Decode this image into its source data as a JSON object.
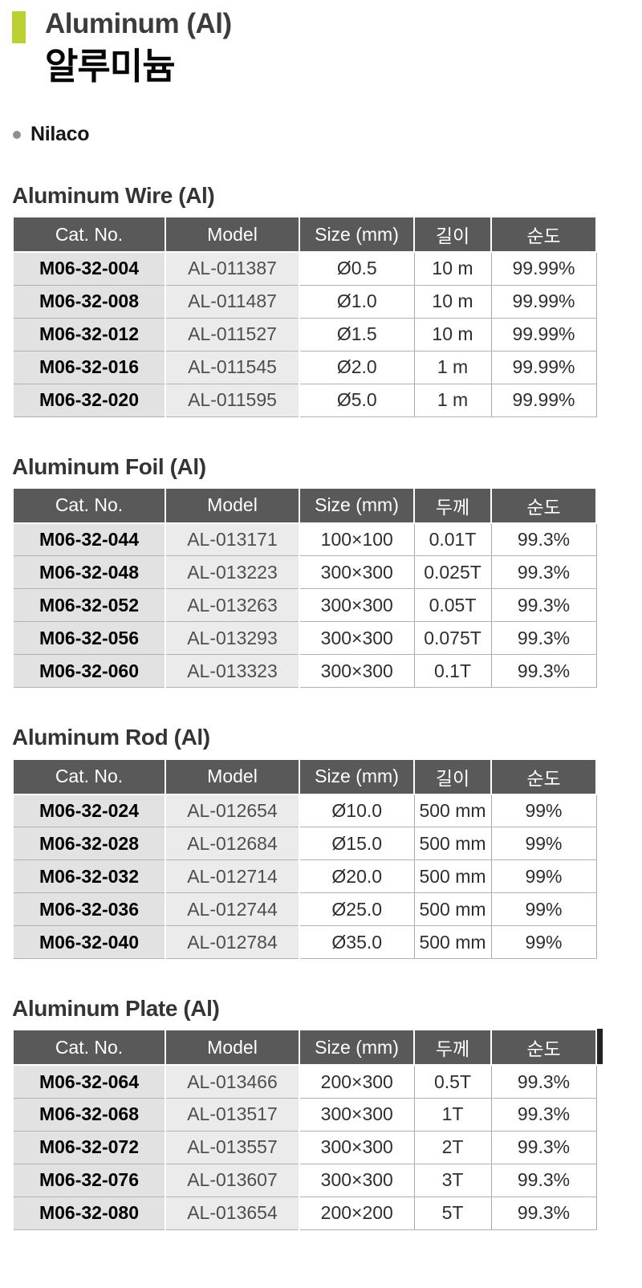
{
  "colors": {
    "accent": "#bcd02f",
    "table_header_bg": "#595959"
  },
  "header": {
    "title_en": "Aluminum (Al)",
    "title_ko": "알루미늄",
    "supplier": "Nilaco"
  },
  "tables": [
    {
      "heading": "Aluminum Wire (Al)",
      "columns": [
        "Cat. No.",
        "Model",
        "Size (mm)",
        "길이",
        "순도"
      ],
      "rows": [
        [
          "M06-32-004",
          "AL-011387",
          "Ø0.5",
          "10 m",
          "99.99%"
        ],
        [
          "M06-32-008",
          "AL-011487",
          "Ø1.0",
          "10 m",
          "99.99%"
        ],
        [
          "M06-32-012",
          "AL-011527",
          "Ø1.5",
          "10 m",
          "99.99%"
        ],
        [
          "M06-32-016",
          "AL-011545",
          "Ø2.0",
          "1 m",
          "99.99%"
        ],
        [
          "M06-32-020",
          "AL-011595",
          "Ø5.0",
          "1 m",
          "99.99%"
        ]
      ]
    },
    {
      "heading": "Aluminum Foil (Al)",
      "columns": [
        "Cat. No.",
        "Model",
        "Size (mm)",
        "두께",
        "순도"
      ],
      "rows": [
        [
          "M06-32-044",
          "AL-013171",
          "100×100",
          "0.01T",
          "99.3%"
        ],
        [
          "M06-32-048",
          "AL-013223",
          "300×300",
          "0.025T",
          "99.3%"
        ],
        [
          "M06-32-052",
          "AL-013263",
          "300×300",
          "0.05T",
          "99.3%"
        ],
        [
          "M06-32-056",
          "AL-013293",
          "300×300",
          "0.075T",
          "99.3%"
        ],
        [
          "M06-32-060",
          "AL-013323",
          "300×300",
          "0.1T",
          "99.3%"
        ]
      ]
    },
    {
      "heading": "Aluminum Rod (Al)",
      "columns": [
        "Cat. No.",
        "Model",
        "Size (mm)",
        "길이",
        "순도"
      ],
      "rows": [
        [
          "M06-32-024",
          "AL-012654",
          "Ø10.0",
          "500 mm",
          "99%"
        ],
        [
          "M06-32-028",
          "AL-012684",
          "Ø15.0",
          "500 mm",
          "99%"
        ],
        [
          "M06-32-032",
          "AL-012714",
          "Ø20.0",
          "500 mm",
          "99%"
        ],
        [
          "M06-32-036",
          "AL-012744",
          "Ø25.0",
          "500 mm",
          "99%"
        ],
        [
          "M06-32-040",
          "AL-012784",
          "Ø35.0",
          "500 mm",
          "99%"
        ]
      ]
    },
    {
      "heading": "Aluminum Plate (Al)",
      "columns": [
        "Cat. No.",
        "Model",
        "Size (mm)",
        "두께",
        "순도"
      ],
      "rows": [
        [
          "M06-32-064",
          "AL-013466",
          "200×300",
          "0.5T",
          "99.3%"
        ],
        [
          "M06-32-068",
          "AL-013517",
          "300×300",
          "1T",
          "99.3%"
        ],
        [
          "M06-32-072",
          "AL-013557",
          "300×300",
          "2T",
          "99.3%"
        ],
        [
          "M06-32-076",
          "AL-013607",
          "300×300",
          "3T",
          "99.3%"
        ],
        [
          "M06-32-080",
          "AL-013654",
          "200×200",
          "5T",
          "99.3%"
        ]
      ]
    }
  ]
}
